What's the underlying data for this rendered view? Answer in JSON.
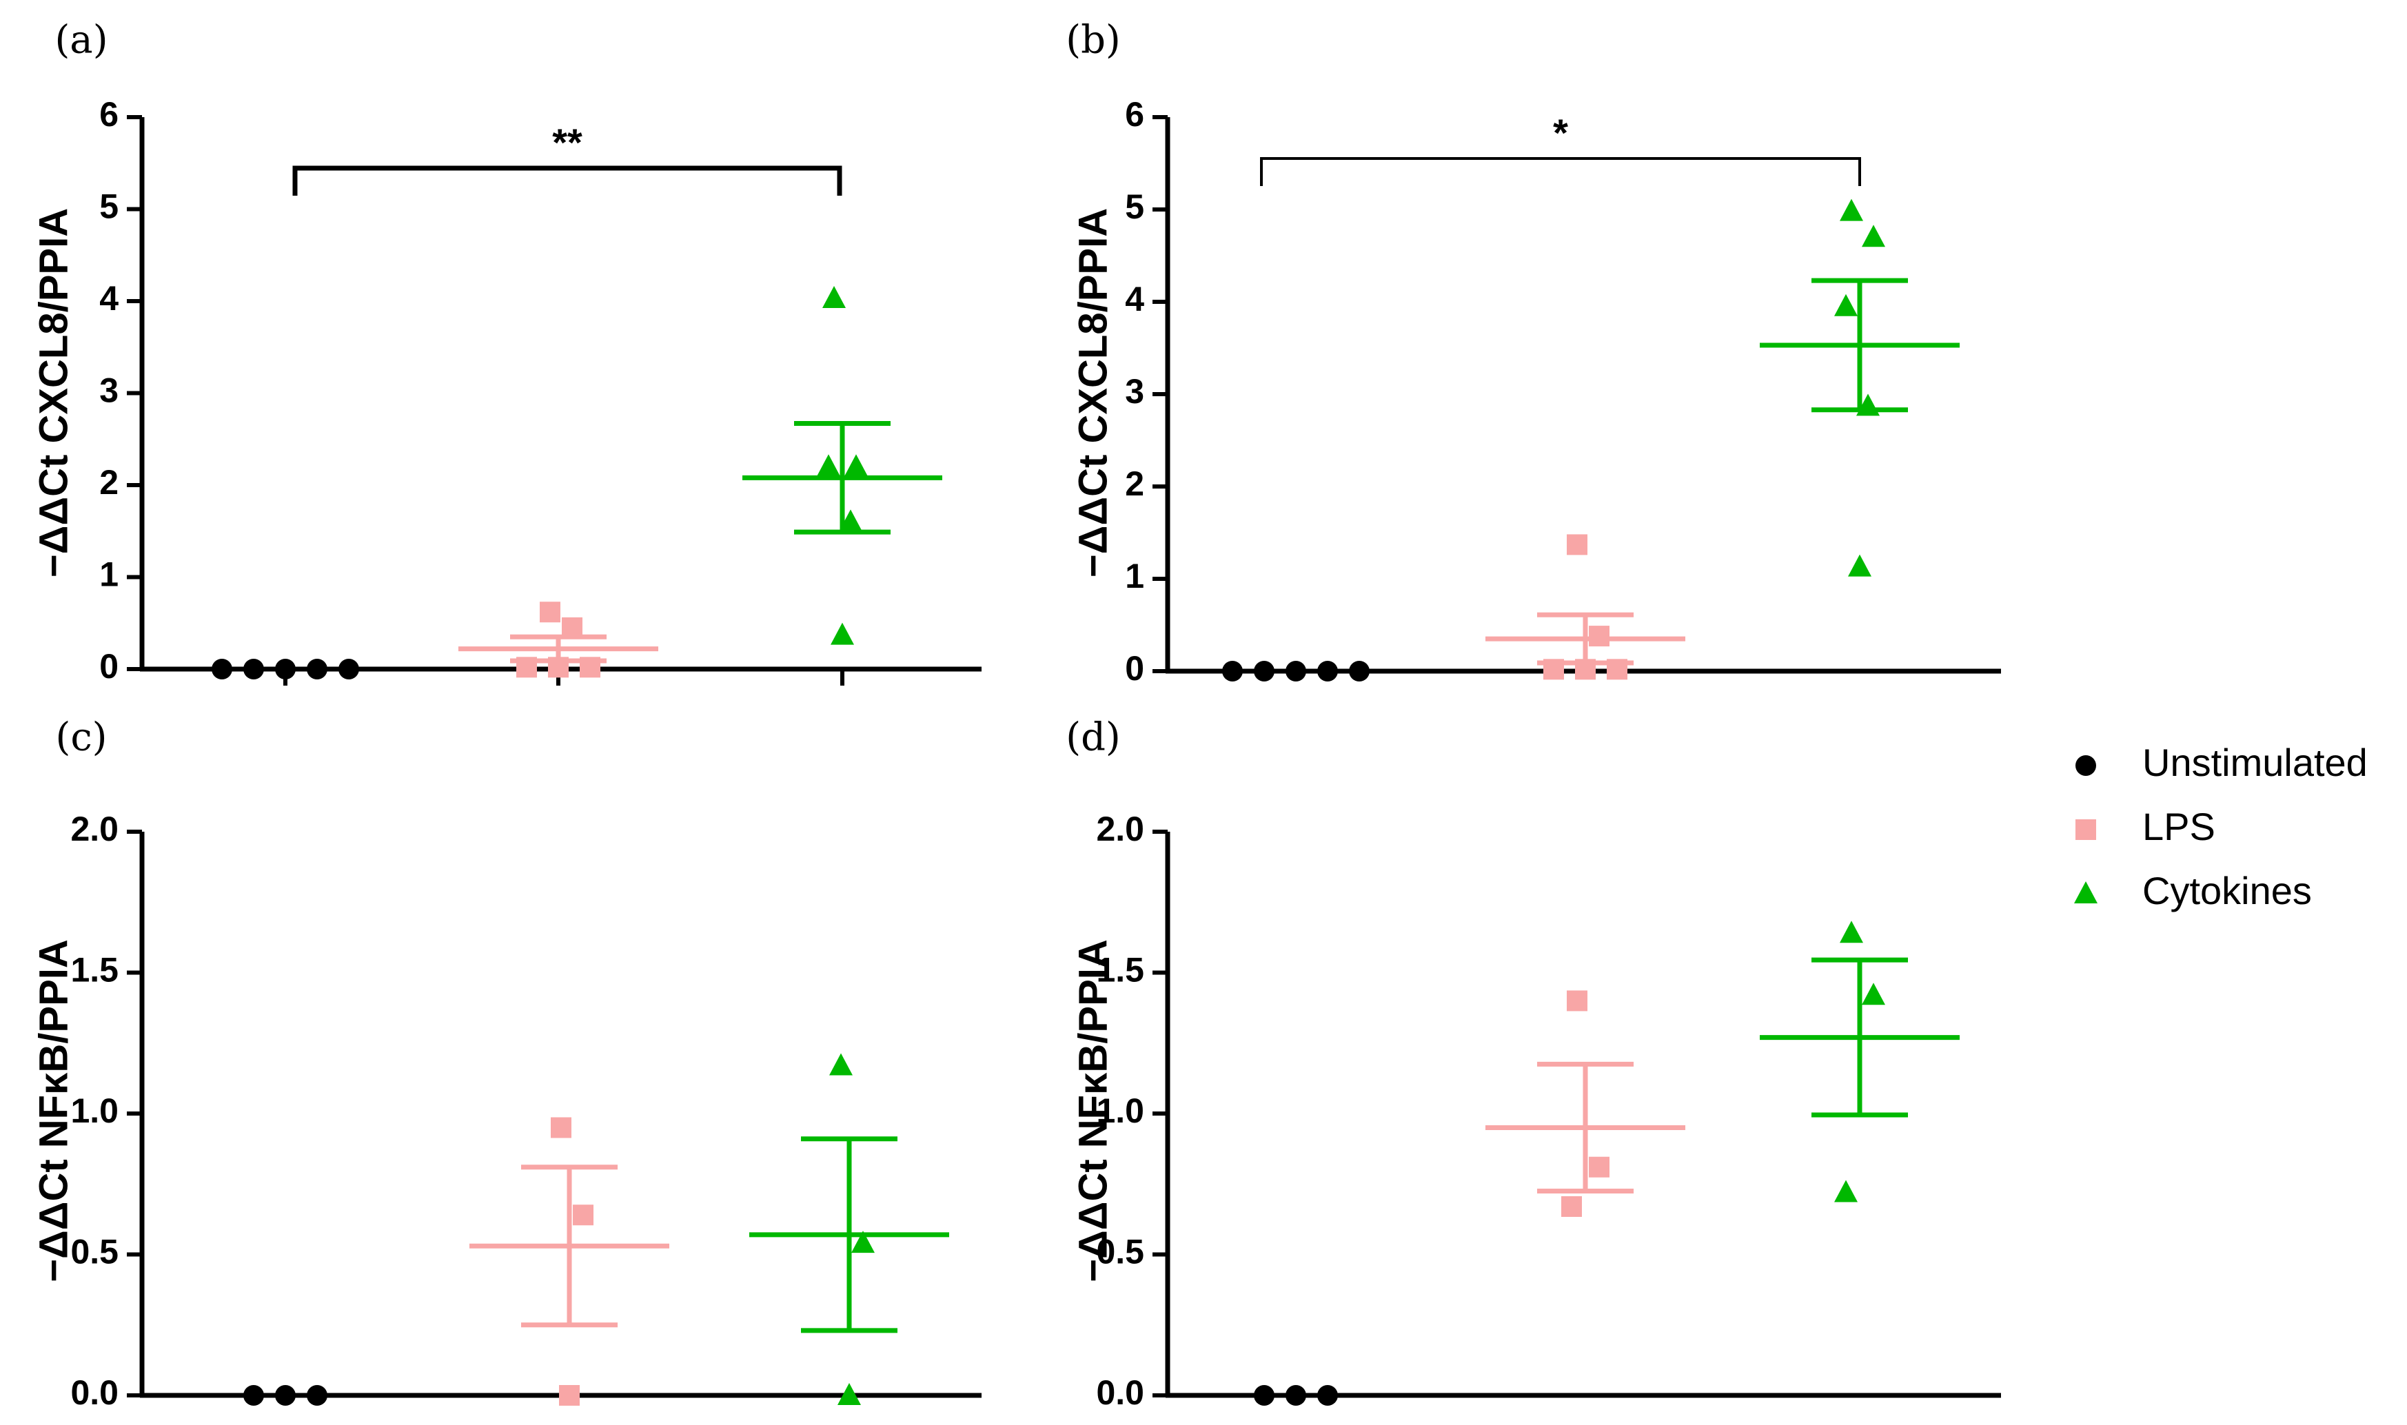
{
  "legend": {
    "items": [
      {
        "label": "Unstimulated",
        "color": "#000000",
        "marker": "circle"
      },
      {
        "label": "LPS",
        "color": "#f8a6a6",
        "marker": "square"
      },
      {
        "label": "Cytokines",
        "color": "#00b800",
        "marker": "triangle"
      }
    ]
  },
  "chart_data": [
    {
      "panel": "(a)",
      "type": "scatter",
      "ylabel": "−ΔΔCt CXCL8/PPIA",
      "ylim": [
        0,
        6
      ],
      "yticks": [
        "0",
        "1",
        "2",
        "3",
        "4",
        "5",
        "6"
      ],
      "x_axis_ticks": true,
      "significance": {
        "from": "Unstimulated",
        "to": "Cytokines",
        "label": "**"
      },
      "series": [
        {
          "name": "Unstimulated",
          "values": [
            0,
            0,
            0,
            0,
            0
          ],
          "mean": 0,
          "sem": 0
        },
        {
          "name": "LPS",
          "values": [
            0.62,
            0.45,
            0.02,
            0.02,
            0.02
          ],
          "mean": 0.22,
          "sem": 0.13
        },
        {
          "name": "Cytokines",
          "values": [
            4.03,
            2.2,
            2.2,
            1.6,
            0.37
          ],
          "mean": 2.08,
          "sem": 0.59
        }
      ]
    },
    {
      "panel": "(b)",
      "type": "scatter",
      "ylabel": "−ΔΔCt CXCL8/PPIA",
      "ylim": [
        0,
        6
      ],
      "yticks": [
        "0",
        "1",
        "2",
        "3",
        "4",
        "5",
        "6"
      ],
      "x_axis_ticks": false,
      "significance": {
        "from": "Unstimulated",
        "to": "Cytokines",
        "label": "*"
      },
      "series": [
        {
          "name": "Unstimulated",
          "values": [
            0,
            0,
            0,
            0,
            0
          ],
          "mean": 0,
          "sem": 0
        },
        {
          "name": "LPS",
          "values": [
            1.37,
            0.38,
            0.02,
            0.02,
            0.02
          ],
          "mean": 0.35,
          "sem": 0.26
        },
        {
          "name": "Cytokines",
          "values": [
            4.98,
            4.7,
            3.95,
            2.87,
            1.13
          ],
          "mean": 3.53,
          "sem": 0.7
        }
      ]
    },
    {
      "panel": "(c)",
      "type": "scatter",
      "ylabel": "−ΔΔCt NFκB/PPIA",
      "ylim": [
        0,
        2
      ],
      "yticks": [
        "0.0",
        "0.5",
        "1.0",
        "1.5",
        "2.0"
      ],
      "x_axis_ticks": false,
      "significance": null,
      "series": [
        {
          "name": "Unstimulated",
          "values": [
            0,
            0,
            0
          ],
          "mean": 0,
          "sem": 0
        },
        {
          "name": "LPS",
          "values": [
            0.95,
            0.64,
            0.0
          ],
          "mean": 0.53,
          "sem": 0.28
        },
        {
          "name": "Cytokines",
          "values": [
            1.17,
            0.54,
            0.0
          ],
          "mean": 0.57,
          "sem": 0.34
        }
      ]
    },
    {
      "panel": "(d)",
      "type": "scatter",
      "ylabel": "−ΔΔCt NFκB/PPIA",
      "ylim": [
        0,
        2
      ],
      "yticks": [
        "0.0",
        "0.5",
        "1.0",
        "1.5",
        "2.0"
      ],
      "x_axis_ticks": false,
      "significance": null,
      "series": [
        {
          "name": "Unstimulated",
          "values": [
            0,
            0,
            0
          ],
          "mean": 0,
          "sem": 0
        },
        {
          "name": "LPS",
          "values": [
            1.4,
            0.81,
            0.67
          ],
          "mean": 0.95,
          "sem": 0.225
        },
        {
          "name": "Cytokines",
          "values": [
            1.64,
            1.42,
            0.72
          ],
          "mean": 1.27,
          "sem": 0.275
        }
      ]
    }
  ]
}
